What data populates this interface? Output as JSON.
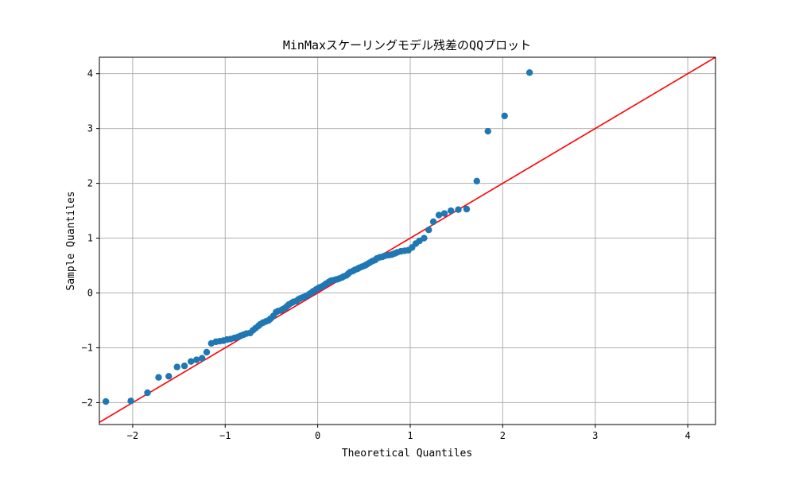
{
  "chart_data": {
    "type": "scatter",
    "title": "MinMaxスケーリングモデル残差のQQプロット",
    "xlabel": "Theoretical Quantiles",
    "ylabel": "Sample Quantiles",
    "xlim": [
      -2.36,
      4.3
    ],
    "ylim": [
      -2.4,
      4.3
    ],
    "xticks": [
      -2,
      -1,
      0,
      1,
      2,
      3,
      4
    ],
    "yticks": [
      -2,
      -1,
      0,
      1,
      2,
      3,
      4
    ],
    "xtick_labels": [
      "−2",
      "−1",
      "0",
      "1",
      "2",
      "3",
      "4"
    ],
    "ytick_labels": [
      "−2",
      "−1",
      "0",
      "1",
      "2",
      "3",
      "4"
    ],
    "grid": true,
    "colors": {
      "points": "#1f77b4",
      "reference_line": "#ff0000",
      "grid": "#b0b0b0"
    },
    "reference_line": {
      "slope": 1,
      "intercept": 0
    },
    "series": [
      {
        "x": [
          -2.29,
          -2.02,
          -1.84,
          -1.72,
          -1.61,
          -1.52,
          -1.44,
          -1.37,
          -1.31,
          -1.25,
          -1.2,
          -1.15,
          -1.1,
          -1.06,
          -1.02,
          -0.98,
          -0.94,
          -0.9,
          -0.86,
          -0.83,
          -0.8,
          -0.77,
          -0.73,
          -0.7,
          -0.67,
          -0.64,
          -0.62,
          -0.59,
          -0.56,
          -0.53,
          -0.51,
          -0.48,
          -0.45,
          -0.43,
          -0.4,
          -0.38,
          -0.35,
          -0.33,
          -0.31,
          -0.28,
          -0.26,
          -0.23,
          -0.21,
          -0.19,
          -0.16,
          -0.14,
          -0.12,
          -0.09,
          -0.07,
          -0.05,
          -0.02,
          0.0,
          0.02,
          0.05,
          0.07,
          0.09,
          0.12,
          0.14,
          0.16,
          0.19,
          0.21,
          0.23,
          0.26,
          0.28,
          0.31,
          0.33,
          0.35,
          0.38,
          0.4,
          0.43,
          0.45,
          0.48,
          0.51,
          0.53,
          0.56,
          0.59,
          0.62,
          0.64,
          0.67,
          0.7,
          0.73,
          0.77,
          0.8,
          0.83,
          0.86,
          0.9,
          0.94,
          0.98,
          1.02,
          1.06,
          1.1,
          1.15,
          1.2,
          1.25,
          1.31,
          1.37,
          1.44,
          1.52,
          1.61,
          1.72,
          1.84,
          2.02,
          2.29
        ],
        "y": [
          -1.98,
          -1.97,
          -1.82,
          -1.54,
          -1.52,
          -1.35,
          -1.33,
          -1.25,
          -1.22,
          -1.19,
          -1.08,
          -0.92,
          -0.89,
          -0.88,
          -0.87,
          -0.85,
          -0.84,
          -0.82,
          -0.8,
          -0.78,
          -0.76,
          -0.74,
          -0.73,
          -0.68,
          -0.64,
          -0.6,
          -0.57,
          -0.54,
          -0.52,
          -0.5,
          -0.47,
          -0.42,
          -0.35,
          -0.33,
          -0.32,
          -0.3,
          -0.27,
          -0.24,
          -0.21,
          -0.18,
          -0.16,
          -0.15,
          -0.12,
          -0.1,
          -0.08,
          -0.07,
          -0.05,
          -0.02,
          0.0,
          0.03,
          0.06,
          0.08,
          0.1,
          0.12,
          0.14,
          0.17,
          0.2,
          0.22,
          0.23,
          0.24,
          0.25,
          0.26,
          0.28,
          0.3,
          0.32,
          0.35,
          0.38,
          0.4,
          0.42,
          0.44,
          0.46,
          0.48,
          0.5,
          0.52,
          0.55,
          0.58,
          0.6,
          0.63,
          0.65,
          0.66,
          0.68,
          0.69,
          0.7,
          0.72,
          0.74,
          0.76,
          0.77,
          0.78,
          0.83,
          0.9,
          0.95,
          1.0,
          1.15,
          1.3,
          1.42,
          1.45,
          1.5,
          1.52,
          1.53,
          2.04,
          2.95,
          3.23,
          4.02
        ]
      }
    ]
  }
}
